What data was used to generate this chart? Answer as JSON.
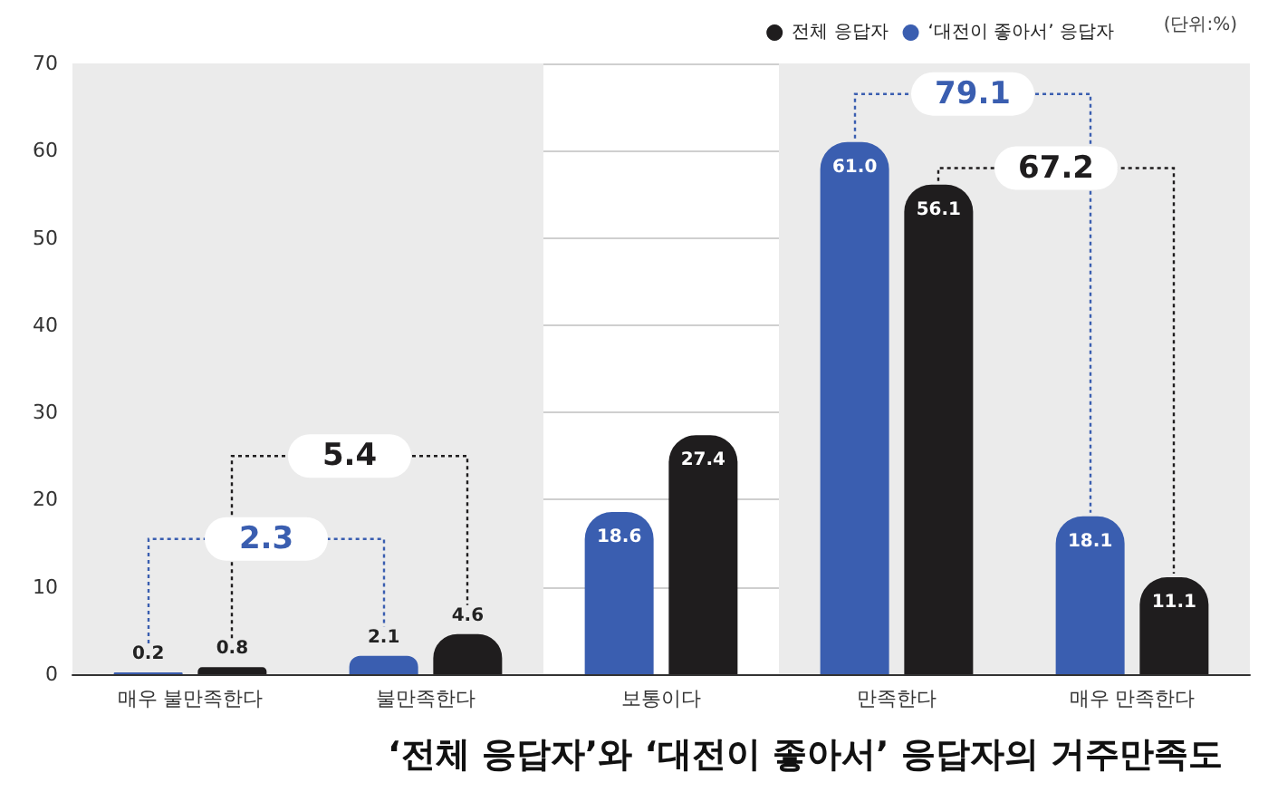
{
  "chart_data": {
    "type": "bar",
    "title": "‘전체 응답자’와 ‘대전이 좋아서’ 응답자의 거주만족도",
    "subtitle": "(단위:%)",
    "categories": [
      "매우 불만족한다",
      "불만족한다",
      "보통이다",
      "만족한다",
      "매우 만족한다"
    ],
    "series": [
      {
        "name": "‘대전이 좋아서’ 응답자",
        "color": "#3a5eb0",
        "values": [
          0.2,
          2.1,
          18.6,
          61.0,
          18.1
        ],
        "value_labels": [
          "0.2",
          "2.1",
          "18.6",
          "61.0",
          "18.1"
        ]
      },
      {
        "name": "전체 응답자",
        "color": "#1f1d1e",
        "values": [
          0.8,
          4.6,
          27.4,
          56.1,
          11.1
        ],
        "value_labels": [
          "0.8",
          "4.6",
          "27.4",
          "56.1",
          "11.1"
        ]
      }
    ],
    "ylim": [
      0,
      70
    ],
    "yticks": [
      0,
      10,
      20,
      30,
      40,
      50,
      60,
      70
    ],
    "grid": "y",
    "legend": "top right",
    "bands": [
      {
        "axis": "x",
        "from": "매우 불만족한다",
        "to": "불만족한다",
        "color": "#ebebeb"
      },
      {
        "axis": "x",
        "from": "만족한다",
        "to": "매우 만족한다",
        "color": "#ebebeb"
      }
    ],
    "annotations": [
      "2.3",
      "5.4",
      "79.1",
      "67.2"
    ]
  }
}
